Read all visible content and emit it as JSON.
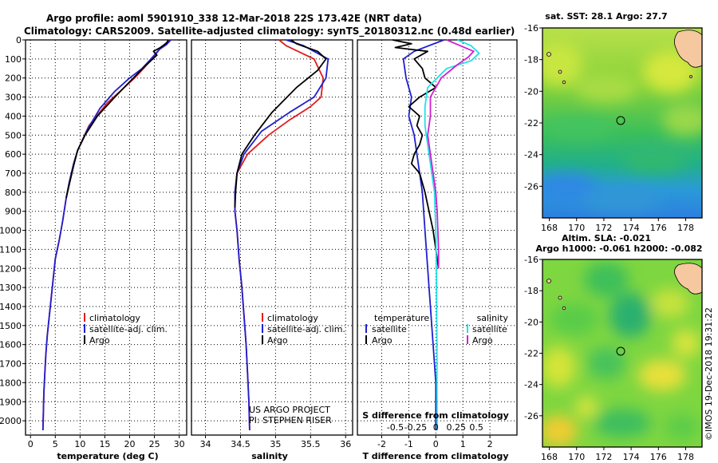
{
  "header": {
    "line1": "Argo profile: aoml 5901910_338 12-Mar-2018 22S 173.42E (NRT data)",
    "line2": "Climatology: CARS2009. Satellite-adjusted climatology: synTS_20180312.nc (0.48d earlier)"
  },
  "credit": {
    "line1": "US ARGO PROJECT",
    "line2": "PI: STEPHEN RISER"
  },
  "stamp": "©IMOS 19-Dec-2018 19:31:22",
  "colors": {
    "climatology": "#e31a1c",
    "satellite": "#1f1fd0",
    "argo": "#000000",
    "sal_satellite": "#22e0e8",
    "sal_argo": "#d020d0"
  },
  "chart_data": [
    {
      "type": "line",
      "panel": "temperature",
      "xlabel": "temperature (deg C)",
      "xlim": [
        -1,
        31.5
      ],
      "xticks": [
        0,
        5,
        10,
        15,
        20,
        25,
        30
      ],
      "ylim": [
        2075,
        0
      ],
      "yticks": [
        0,
        100,
        200,
        300,
        400,
        500,
        600,
        700,
        800,
        900,
        1000,
        1100,
        1200,
        1300,
        1400,
        1500,
        1600,
        1700,
        1800,
        1900,
        2000
      ],
      "legend": [
        "climatology",
        "satellite-adj. clim.",
        "Argo"
      ],
      "series": [
        {
          "name": "climatology",
          "color": "#e31a1c",
          "x": [
            28.0,
            27.0,
            26.0,
            24.5,
            22.8,
            21.0,
            18.5,
            15.5,
            11.8,
            9.5,
            8.7,
            7.8,
            7.2,
            6.5,
            5.8,
            5.0,
            4.6,
            4.2,
            3.8,
            3.4,
            3.1,
            2.9,
            2.7,
            2.6,
            2.5
          ],
          "y": [
            0,
            25,
            50,
            100,
            150,
            200,
            260,
            330,
            450,
            580,
            650,
            750,
            830,
            950,
            1050,
            1150,
            1250,
            1350,
            1450,
            1550,
            1650,
            1750,
            1850,
            1950,
            2050
          ]
        },
        {
          "name": "satellite-adj. clim.",
          "color": "#1f1fd0",
          "x": [
            28.3,
            27.4,
            26.0,
            24.3,
            22.5,
            20.0,
            17.0,
            14.0,
            11.5,
            9.5,
            8.7,
            7.8,
            7.2,
            6.5,
            5.8,
            5.0,
            4.6,
            4.2,
            3.8,
            3.4,
            3.1,
            2.9,
            2.7,
            2.6,
            2.5
          ],
          "y": [
            0,
            25,
            50,
            100,
            150,
            200,
            270,
            360,
            470,
            580,
            650,
            750,
            830,
            950,
            1050,
            1150,
            1250,
            1350,
            1450,
            1550,
            1650,
            1750,
            1850,
            1950,
            2050
          ]
        },
        {
          "name": "Argo",
          "color": "#000000",
          "x": [
            27.8,
            27.5,
            26.2,
            24.8,
            25.5,
            23.0,
            20.0,
            17.0,
            13.5,
            11.0,
            9.5,
            8.8,
            7.9,
            7.2
          ],
          "y": [
            0,
            15,
            40,
            60,
            80,
            140,
            220,
            300,
            400,
            500,
            580,
            650,
            750,
            830
          ]
        }
      ]
    },
    {
      "type": "line",
      "panel": "salinity",
      "xlabel": "salinity",
      "xlim": [
        33.8,
        36.1
      ],
      "xticks": [
        34,
        34.5,
        35,
        35.5,
        36
      ],
      "ylim": [
        2075,
        0
      ],
      "legend": [
        "climatology",
        "satellite-adj. clim.",
        "Argo"
      ],
      "series": [
        {
          "name": "climatology",
          "color": "#e31a1c",
          "x": [
            35.05,
            35.15,
            35.55,
            35.68,
            35.65,
            35.5,
            35.2,
            34.9,
            34.6,
            34.45,
            34.42,
            34.42,
            34.45,
            34.48,
            34.52,
            34.55,
            34.58,
            34.6,
            34.62,
            34.63
          ],
          "y": [
            0,
            30,
            100,
            200,
            300,
            350,
            420,
            500,
            600,
            700,
            800,
            900,
            1000,
            1150,
            1300,
            1450,
            1600,
            1750,
            1900,
            2050
          ]
        },
        {
          "name": "satellite-adj. clim.",
          "color": "#1f1fd0",
          "x": [
            35.15,
            35.4,
            35.75,
            35.72,
            35.55,
            35.2,
            34.8,
            34.55,
            34.45,
            34.42,
            34.42,
            34.45,
            34.48,
            34.52,
            34.55,
            34.58,
            34.6,
            34.62,
            34.63
          ],
          "y": [
            0,
            30,
            100,
            200,
            300,
            380,
            480,
            600,
            700,
            800,
            900,
            1000,
            1150,
            1300,
            1450,
            1600,
            1750,
            1900,
            2050
          ]
        },
        {
          "name": "Argo",
          "color": "#000000",
          "x": [
            35.22,
            35.3,
            35.6,
            35.72,
            35.6,
            35.3,
            34.95,
            34.7,
            34.52,
            34.45,
            34.43,
            34.42
          ],
          "y": [
            0,
            20,
            60,
            100,
            160,
            250,
            380,
            500,
            600,
            700,
            800,
            880
          ]
        }
      ]
    },
    {
      "type": "line",
      "panel": "difference",
      "xlabel": "T difference from climatology",
      "xlabel2": "S difference from climatology",
      "xlim": [
        -2.9,
        3.0
      ],
      "xticks": [
        -2,
        -1,
        0,
        1,
        2
      ],
      "xticks2_labels": [
        "-0.5",
        "-0.25",
        "0",
        "0.25",
        "0.5"
      ],
      "ylim": [
        2075,
        0
      ],
      "legend_left_title": "temperature",
      "legend_right_title": "salinity",
      "legend_left": [
        "satellite",
        "Argo"
      ],
      "legend_right": [
        "satellite",
        "Argo"
      ],
      "series": [
        {
          "name": "satellite",
          "color": "#1f1fd0",
          "x": [
            0.3,
            -0.8,
            -1.2,
            -1.1,
            -0.9,
            -1.0,
            -0.8,
            -0.7,
            -0.5,
            -0.4,
            -0.3,
            -0.2,
            -0.1,
            0.0,
            0.0
          ],
          "y": [
            0,
            60,
            100,
            200,
            300,
            400,
            500,
            600,
            800,
            1000,
            1200,
            1400,
            1600,
            1800,
            2050
          ]
        },
        {
          "name": "Argo",
          "color": "#000000",
          "x": [
            -1.6,
            -0.9,
            -1.5,
            -0.3,
            -0.8,
            -0.5,
            -0.4,
            0.0,
            -0.6,
            -1.0,
            -0.6,
            -0.7,
            -0.5,
            -0.6,
            -0.8,
            -0.9,
            -0.6,
            -0.4,
            -0.1,
            0.0,
            0.1
          ],
          "y": [
            0,
            20,
            40,
            60,
            100,
            150,
            200,
            250,
            300,
            350,
            400,
            450,
            500,
            550,
            600,
            650,
            700,
            800,
            1000,
            1100,
            1200
          ]
        },
        {
          "name": "satellite",
          "color": "#22e0e8",
          "x": [
            0.8,
            1.3,
            1.6,
            1.3,
            0.4,
            -0.3,
            -0.4,
            -0.4,
            -0.3,
            -0.2,
            -0.05,
            0.0,
            0.02,
            0.03,
            0.04,
            0.04,
            0.05
          ],
          "y": [
            0,
            30,
            70,
            110,
            150,
            250,
            350,
            450,
            550,
            650,
            800,
            1000,
            1200,
            1400,
            1600,
            1800,
            2050
          ]
        },
        {
          "name": "Argo",
          "color": "#d020d0",
          "x": [
            0.4,
            0.9,
            1.4,
            1.2,
            0.8,
            0.2,
            -0.2,
            -0.2,
            -0.3,
            -0.2,
            -0.1,
            0.0,
            0.05,
            0.1,
            0.1
          ],
          "y": [
            0,
            30,
            60,
            90,
            130,
            200,
            300,
            400,
            500,
            600,
            700,
            800,
            900,
            1100,
            1200
          ]
        }
      ]
    },
    {
      "type": "heatmap",
      "panel": "sst-map",
      "title": "sat. SST: 28.1  Argo: 27.7",
      "xlim": [
        167.5,
        179.2
      ],
      "ylim": [
        -28,
        -16
      ],
      "xticks": [
        168,
        170,
        172,
        174,
        176,
        178
      ],
      "yticks": [
        -16,
        -18,
        -20,
        -22,
        -24,
        -26
      ],
      "marker": {
        "lon": 173.42,
        "lat": -22
      }
    },
    {
      "type": "heatmap",
      "panel": "sla-map",
      "title": "Altim. SLA: -0.021",
      "subtitle": "Argo h1000: -0.061 h2000: -0.082",
      "xlim": [
        167.5,
        179.2
      ],
      "ylim": [
        -28,
        -16
      ],
      "xticks": [
        168,
        170,
        172,
        174,
        176,
        178
      ],
      "yticks": [
        -16,
        -18,
        -20,
        -22,
        -24,
        -26
      ],
      "marker": {
        "lon": 173.42,
        "lat": -22
      }
    }
  ]
}
